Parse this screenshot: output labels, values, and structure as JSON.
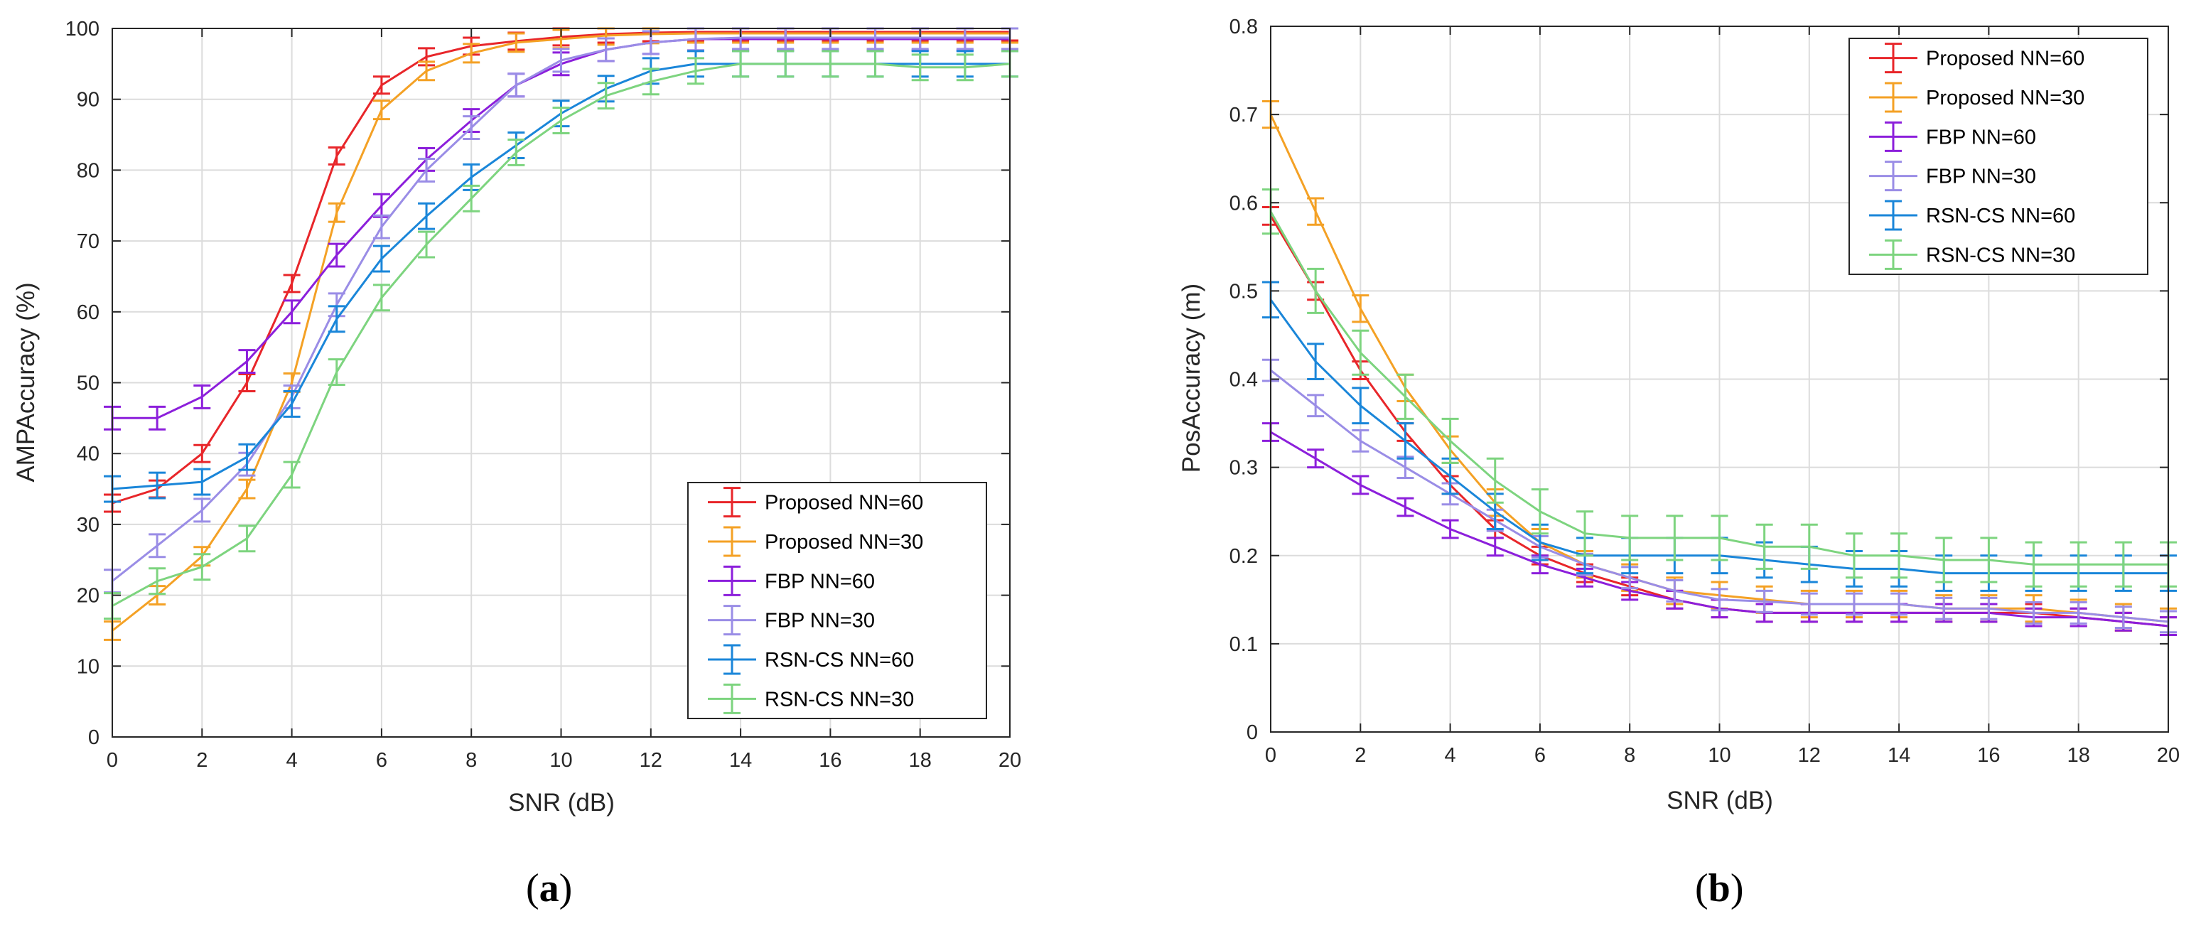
{
  "chart_data": [
    {
      "type": "line",
      "panel_label": "(a)",
      "panel_letter": "a",
      "xlabel": "SNR (dB)",
      "ylabel": "AMPAccuracy (%)",
      "xlim": [
        0,
        20
      ],
      "ylim": [
        0,
        100
      ],
      "xticks": [
        0,
        2,
        4,
        6,
        8,
        10,
        12,
        14,
        16,
        18,
        20
      ],
      "yticks": [
        0,
        10,
        20,
        30,
        40,
        50,
        60,
        70,
        80,
        90,
        100
      ],
      "grid": true,
      "legend_position": "bottom-right",
      "x": [
        0,
        1,
        2,
        3,
        4,
        5,
        6,
        7,
        8,
        9,
        10,
        11,
        12,
        13,
        14,
        15,
        16,
        17,
        18,
        19,
        20
      ],
      "series": [
        {
          "name": "Proposed NN=60",
          "color": "#e8262a",
          "err": 1.2,
          "values": [
            33,
            35,
            40,
            50,
            64,
            82,
            92,
            96,
            97.5,
            98.2,
            98.8,
            99.2,
            99.4,
            99.5,
            99.5,
            99.5,
            99.5,
            99.5,
            99.5,
            99.5,
            99.5
          ]
        },
        {
          "name": "Proposed NN=30",
          "color": "#f4a125",
          "err": 1.3,
          "values": [
            15,
            20,
            25.5,
            35,
            50,
            74,
            88.5,
            94,
            96.5,
            98,
            98.5,
            99,
            99.2,
            99.3,
            99.3,
            99.3,
            99.3,
            99.3,
            99.3,
            99.3,
            99.3
          ]
        },
        {
          "name": "FBP NN=60",
          "color": "#8c1fdb",
          "err": 1.6,
          "values": [
            45,
            45,
            48,
            53,
            60,
            68,
            75,
            81.5,
            87,
            92,
            95,
            97,
            98,
            98.5,
            98.5,
            98.5,
            98.5,
            98.5,
            98.5,
            98.5,
            98.5
          ]
        },
        {
          "name": "FBP NN=30",
          "color": "#9a8de6",
          "err": 1.6,
          "values": [
            22,
            27,
            32,
            38.5,
            48,
            61,
            72,
            80,
            86,
            92,
            95.5,
            97,
            98,
            98.5,
            98.7,
            98.7,
            98.7,
            98.7,
            98.7,
            98.7,
            98.7
          ]
        },
        {
          "name": "RSN-CS NN=60",
          "color": "#1a86d9",
          "err": 1.8,
          "values": [
            35,
            35.5,
            36,
            39.5,
            47,
            59,
            67.5,
            73.5,
            79,
            83.5,
            88,
            91.5,
            94,
            95,
            95,
            95,
            95,
            95,
            95,
            95,
            95
          ]
        },
        {
          "name": "RSN-CS NN=30",
          "color": "#7dd47f",
          "err": 1.8,
          "values": [
            18.5,
            22,
            24,
            28,
            37,
            51.5,
            62,
            69.5,
            76,
            82.5,
            87,
            90.5,
            92.5,
            94,
            95,
            95,
            95,
            95,
            94.5,
            94.5,
            95
          ]
        }
      ]
    },
    {
      "type": "line",
      "panel_label": "(b)",
      "panel_letter": "b",
      "xlabel": "SNR (dB)",
      "ylabel": "PosAccuracy (m)",
      "xlim": [
        0,
        20
      ],
      "ylim": [
        0,
        0.8
      ],
      "xticks": [
        0,
        2,
        4,
        6,
        8,
        10,
        12,
        14,
        16,
        18,
        20
      ],
      "yticks": [
        0,
        0.1,
        0.2,
        0.3,
        0.4,
        0.5,
        0.6,
        0.7,
        0.8
      ],
      "grid": true,
      "legend_position": "top-right",
      "x": [
        0,
        1,
        2,
        3,
        4,
        5,
        6,
        7,
        8,
        9,
        10,
        11,
        12,
        13,
        14,
        15,
        16,
        17,
        18,
        19,
        20
      ],
      "series": [
        {
          "name": "Proposed NN=60",
          "color": "#e8262a",
          "err": 0.01,
          "values": [
            0.585,
            0.5,
            0.41,
            0.34,
            0.28,
            0.23,
            0.2,
            0.18,
            0.165,
            0.15,
            0.14,
            0.135,
            0.135,
            0.135,
            0.135,
            0.135,
            0.135,
            0.135,
            0.13,
            0.125,
            0.12
          ]
        },
        {
          "name": "Proposed NN=30",
          "color": "#f4a125",
          "err": 0.015,
          "values": [
            0.7,
            0.59,
            0.48,
            0.39,
            0.32,
            0.26,
            0.215,
            0.19,
            0.175,
            0.16,
            0.155,
            0.15,
            0.145,
            0.145,
            0.145,
            0.14,
            0.14,
            0.14,
            0.135,
            0.13,
            0.125
          ]
        },
        {
          "name": "FBP NN=60",
          "color": "#8c1fdb",
          "err": 0.01,
          "values": [
            0.34,
            0.31,
            0.28,
            0.255,
            0.23,
            0.21,
            0.19,
            0.175,
            0.16,
            0.15,
            0.14,
            0.135,
            0.135,
            0.135,
            0.135,
            0.135,
            0.135,
            0.13,
            0.13,
            0.125,
            0.12
          ]
        },
        {
          "name": "FBP NN=30",
          "color": "#9a8de6",
          "err": 0.012,
          "values": [
            0.41,
            0.37,
            0.33,
            0.3,
            0.27,
            0.24,
            0.21,
            0.19,
            0.175,
            0.16,
            0.15,
            0.148,
            0.145,
            0.145,
            0.145,
            0.14,
            0.14,
            0.135,
            0.135,
            0.13,
            0.125
          ]
        },
        {
          "name": "RSN-CS NN=60",
          "color": "#1a86d9",
          "err": 0.02,
          "values": [
            0.49,
            0.42,
            0.37,
            0.33,
            0.29,
            0.25,
            0.215,
            0.2,
            0.2,
            0.2,
            0.2,
            0.195,
            0.19,
            0.185,
            0.185,
            0.18,
            0.18,
            0.18,
            0.18,
            0.18,
            0.18
          ]
        },
        {
          "name": "RSN-CS NN=30",
          "color": "#7dd47f",
          "err": 0.025,
          "values": [
            0.59,
            0.5,
            0.43,
            0.38,
            0.33,
            0.285,
            0.25,
            0.225,
            0.22,
            0.22,
            0.22,
            0.21,
            0.21,
            0.2,
            0.2,
            0.195,
            0.195,
            0.19,
            0.19,
            0.19,
            0.19
          ]
        }
      ]
    }
  ]
}
